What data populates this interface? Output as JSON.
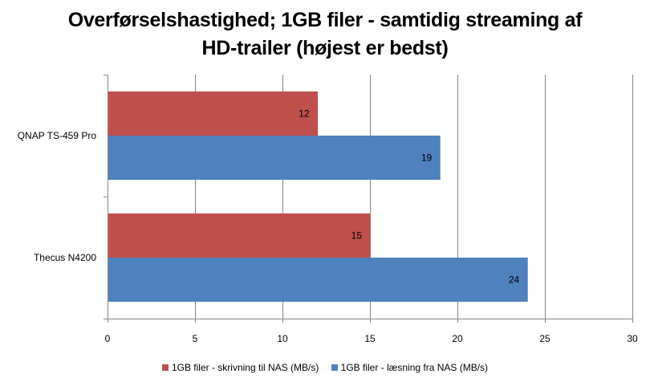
{
  "chart_data": {
    "type": "bar",
    "orientation": "horizontal",
    "title_lines": [
      "Overførselshastighed; 1GB filer - samtidig streaming af",
      "HD-trailer (højest er bedst)"
    ],
    "categories": [
      "QNAP TS-459  Pro",
      "Thecus N4200"
    ],
    "series": [
      {
        "name": "1GB filer - skrivning til NAS (MB/s)",
        "color": "#C0504D",
        "values": [
          12,
          15
        ]
      },
      {
        "name": "1GB filer - læsning fra NAS (MB/s)",
        "color": "#4F81BD",
        "values": [
          19,
          24
        ]
      }
    ],
    "xlim": [
      0,
      30
    ],
    "xticks": [
      0,
      5,
      10,
      15,
      20,
      25,
      30
    ],
    "grid": true,
    "legend_position": "bottom"
  }
}
